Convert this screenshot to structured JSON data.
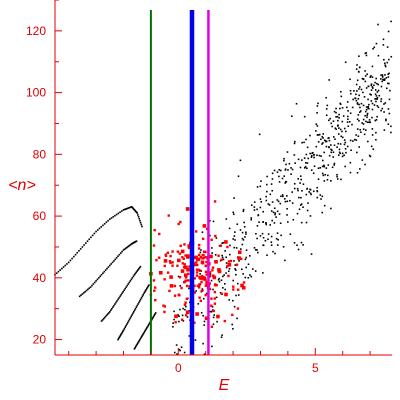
{
  "chart_data": {
    "type": "scatter",
    "title": "",
    "xlabel": "E",
    "ylabel": "<n>",
    "xlim": [
      -4.5,
      7.8
    ],
    "ylim": [
      15,
      130
    ],
    "x_ticks": [
      0,
      5
    ],
    "y_ticks": [
      20,
      40,
      60,
      80,
      100,
      120
    ],
    "grid": false,
    "axis_color": "#e00000",
    "vertical_lines": [
      {
        "x": -1.0,
        "color": "#007000",
        "weight": "thin"
      },
      {
        "x": 0.5,
        "color": "#0000ee",
        "weight": "thick"
      },
      {
        "x": 1.1,
        "color": "#e000e0",
        "weight": "medium"
      }
    ],
    "series": [
      {
        "color": "#000000",
        "marker": "small-dot",
        "kind": "scatter-cloud",
        "trend": {
          "x": [
            -0.2,
            7.8
          ],
          "y": [
            25,
            105
          ]
        },
        "spread": 9,
        "count": 700
      },
      {
        "color": "#ff0000",
        "marker": "dot",
        "kind": "scatter-cloud",
        "x_range": [
          -1.0,
          2.4
        ],
        "y_range": [
          20,
          68
        ],
        "count": 220
      },
      {
        "color": "#000000",
        "marker": "small-dot",
        "kind": "curves",
        "curves": [
          {
            "points": [
              [
                -4.5,
                41
              ],
              [
                -4.0,
                45
              ],
              [
                -3.5,
                50
              ],
              [
                -3.0,
                55
              ],
              [
                -2.5,
                59
              ],
              [
                -2.0,
                62
              ],
              [
                -1.7,
                63
              ],
              [
                -1.5,
                61
              ],
              [
                -1.3,
                56
              ]
            ]
          },
          {
            "points": [
              [
                -3.6,
                34
              ],
              [
                -3.2,
                37
              ],
              [
                -2.8,
                41
              ],
              [
                -2.4,
                45
              ],
              [
                -2.0,
                49
              ],
              [
                -1.7,
                51
              ],
              [
                -1.5,
                52
              ]
            ]
          },
          {
            "points": [
              [
                -2.8,
                26
              ],
              [
                -2.5,
                29
              ],
              [
                -2.2,
                33
              ],
              [
                -1.9,
                37
              ],
              [
                -1.6,
                41
              ],
              [
                -1.35,
                44
              ]
            ]
          },
          {
            "points": [
              [
                -2.2,
                20
              ],
              [
                -2.0,
                23
              ],
              [
                -1.75,
                27
              ],
              [
                -1.5,
                31
              ],
              [
                -1.25,
                35
              ],
              [
                -1.05,
                38
              ]
            ]
          },
          {
            "points": [
              [
                -1.6,
                17
              ],
              [
                -1.4,
                20
              ],
              [
                -1.2,
                23
              ],
              [
                -1.0,
                26
              ],
              [
                -0.8,
                29
              ]
            ]
          }
        ]
      }
    ]
  }
}
